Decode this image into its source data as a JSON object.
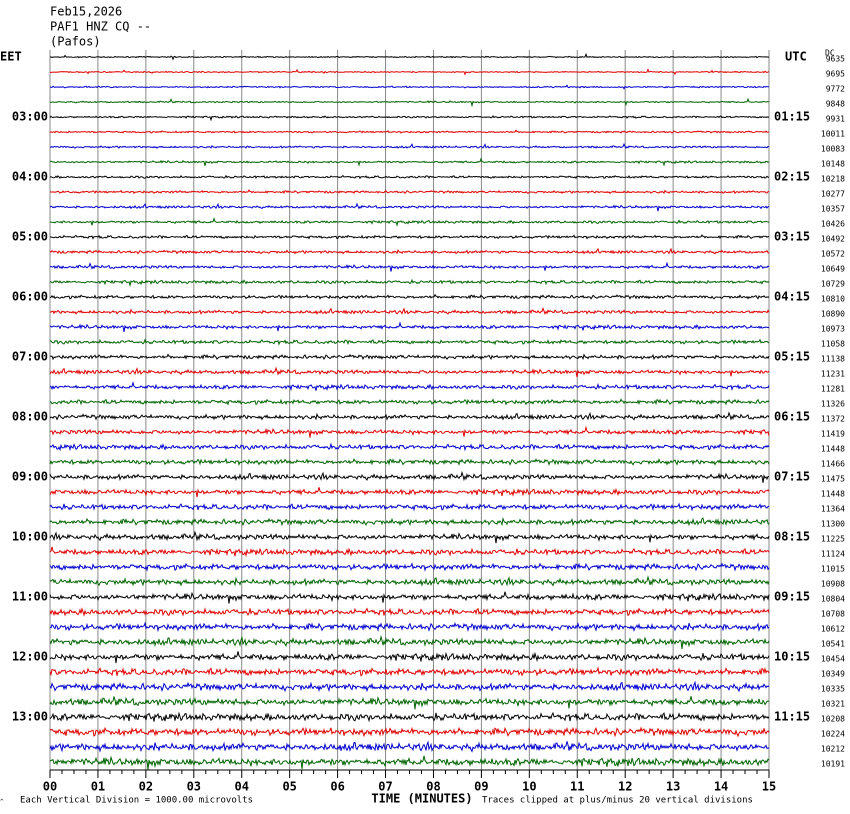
{
  "chart_data": {
    "type": "helicorder",
    "title": [
      "Feb15,2026",
      "PAF1 HNZ CQ --",
      "(Pafos)"
    ],
    "left_zone": "EET",
    "right_zone": "UTC",
    "dc_label": "DC",
    "trace_colors": [
      "#000000",
      "#e00000",
      "#0000d0",
      "#006400"
    ],
    "rows": [
      {
        "dc": 9635
      },
      {
        "dc": 9695
      },
      {
        "dc": 9772
      },
      {
        "dc": 9848
      },
      {
        "dc": 9931,
        "eet": "03:00",
        "utc": "01:15"
      },
      {
        "dc": 10011
      },
      {
        "dc": 10083
      },
      {
        "dc": 10148
      },
      {
        "dc": 10218,
        "eet": "04:00",
        "utc": "02:15"
      },
      {
        "dc": 10277
      },
      {
        "dc": 10357
      },
      {
        "dc": 10426
      },
      {
        "dc": 10492,
        "eet": "05:00",
        "utc": "03:15"
      },
      {
        "dc": 10572
      },
      {
        "dc": 10649
      },
      {
        "dc": 10729
      },
      {
        "dc": 10810,
        "eet": "06:00",
        "utc": "04:15"
      },
      {
        "dc": 10890
      },
      {
        "dc": 10973
      },
      {
        "dc": 11058
      },
      {
        "dc": 11138,
        "eet": "07:00",
        "utc": "05:15"
      },
      {
        "dc": 11231
      },
      {
        "dc": 11281
      },
      {
        "dc": 11326
      },
      {
        "dc": 11372,
        "eet": "08:00",
        "utc": "06:15"
      },
      {
        "dc": 11419
      },
      {
        "dc": 11448
      },
      {
        "dc": 11466
      },
      {
        "dc": 11475,
        "eet": "09:00",
        "utc": "07:15"
      },
      {
        "dc": 11448
      },
      {
        "dc": 11364
      },
      {
        "dc": 11300
      },
      {
        "dc": 11225,
        "eet": "10:00",
        "utc": "08:15"
      },
      {
        "dc": 11124
      },
      {
        "dc": 11015
      },
      {
        "dc": 10908
      },
      {
        "dc": 10804,
        "eet": "11:00",
        "utc": "09:15"
      },
      {
        "dc": 10708
      },
      {
        "dc": 10612
      },
      {
        "dc": 10541
      },
      {
        "dc": 10454,
        "eet": "12:00",
        "utc": "10:15"
      },
      {
        "dc": 10349
      },
      {
        "dc": 10335
      },
      {
        "dc": 10321
      },
      {
        "dc": 10208,
        "eet": "13:00",
        "utc": "11:15"
      },
      {
        "dc": 10224
      },
      {
        "dc": 10212
      },
      {
        "dc": 10191
      }
    ],
    "xlim": [
      0,
      15
    ],
    "xticks": [
      {
        "value": 0,
        "label": "00"
      },
      {
        "value": 1,
        "label": "01"
      },
      {
        "value": 2,
        "label": "02"
      },
      {
        "value": 3,
        "label": "03"
      },
      {
        "value": 4,
        "label": "04"
      },
      {
        "value": 5,
        "label": "05"
      },
      {
        "value": 6,
        "label": "06"
      },
      {
        "value": 7,
        "label": "07"
      },
      {
        "value": 8,
        "label": "08"
      },
      {
        "value": 9,
        "label": "09"
      },
      {
        "value": 10,
        "label": "10"
      },
      {
        "value": 11,
        "label": "11"
      },
      {
        "value": 12,
        "label": "12"
      },
      {
        "value": 13,
        "label": "13"
      },
      {
        "value": 14,
        "label": "14"
      },
      {
        "value": 15,
        "label": "15"
      }
    ],
    "xlabel": "TIME (MINUTES)",
    "scale_note": "Each Vertical Division = 1000.00 microvolts",
    "clip_note": "Traces clipped at plus/minus 20 vertical divisions"
  }
}
